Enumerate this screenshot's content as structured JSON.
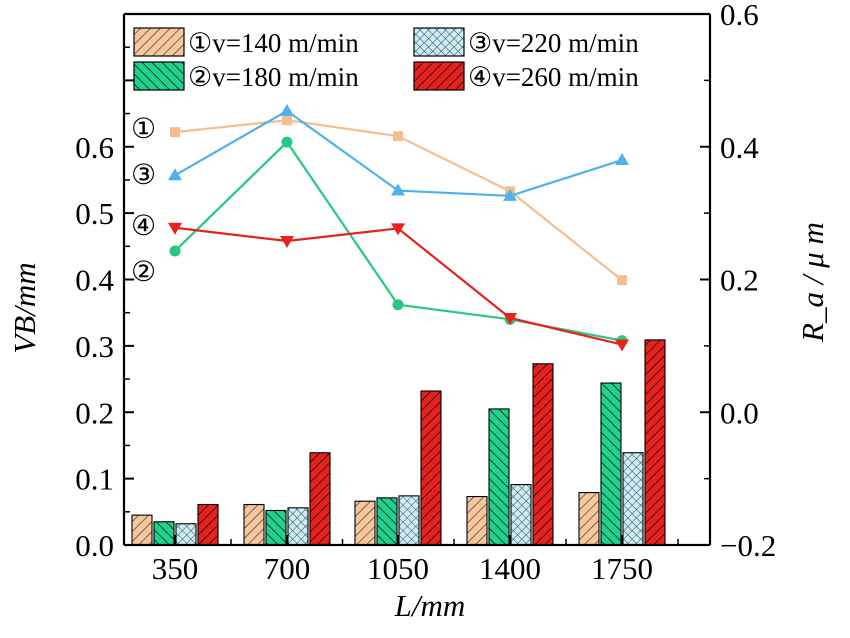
{
  "chart_data": {
    "type": "bar+line",
    "xlabel": "L/mm",
    "ylabel_left": "VB/mm",
    "ylabel_right": "R_a / μ m",
    "categories": [
      "350",
      "700",
      "1050",
      "1400",
      "1750"
    ],
    "left_axis": {
      "ylim": [
        0.0,
        0.8
      ],
      "ticks": [
        "0.0",
        "0.1",
        "0.2",
        "0.3",
        "0.4",
        "0.5",
        "0.6"
      ]
    },
    "right_axis": {
      "ylim": [
        -0.2,
        0.6
      ],
      "ticks": [
        "−0.2",
        "0.0",
        "0.2",
        "0.4",
        "0.6"
      ]
    },
    "bar_series": [
      {
        "name": "①v=140 m/min",
        "values": [
          0.045,
          0.061,
          0.066,
          0.073,
          0.079
        ]
      },
      {
        "name": "②v=180 m/min",
        "values": [
          0.035,
          0.052,
          0.071,
          0.205,
          0.244
        ]
      },
      {
        "name": "③v=220 m/min",
        "values": [
          0.032,
          0.056,
          0.074,
          0.091,
          0.139
        ]
      },
      {
        "name": "④v=260 m/min",
        "values": [
          0.061,
          0.139,
          0.232,
          0.273,
          0.309
        ]
      }
    ],
    "line_series": [
      {
        "label": "①",
        "values": [
          0.422,
          0.44,
          0.416,
          0.333,
          0.199
        ]
      },
      {
        "label": "②",
        "values": [
          0.243,
          0.407,
          0.162,
          0.14,
          0.108
        ]
      },
      {
        "label": "③",
        "values": [
          0.357,
          0.454,
          0.334,
          0.326,
          0.38
        ]
      },
      {
        "label": "④",
        "values": [
          0.278,
          0.258,
          0.277,
          0.142,
          0.102
        ]
      }
    ],
    "colors": {
      "s1": "#F7C79B",
      "s2": "#1ED38B",
      "s3": "#C9EEF7",
      "s4": "#E8211E",
      "line1": "#F5BE8F",
      "line2": "#27C882",
      "line3": "#4DB2EC",
      "line4": "#E8211E"
    },
    "line_markers": [
      "square",
      "circle",
      "triangle-up",
      "triangle-down"
    ],
    "legend_placement": "top"
  }
}
